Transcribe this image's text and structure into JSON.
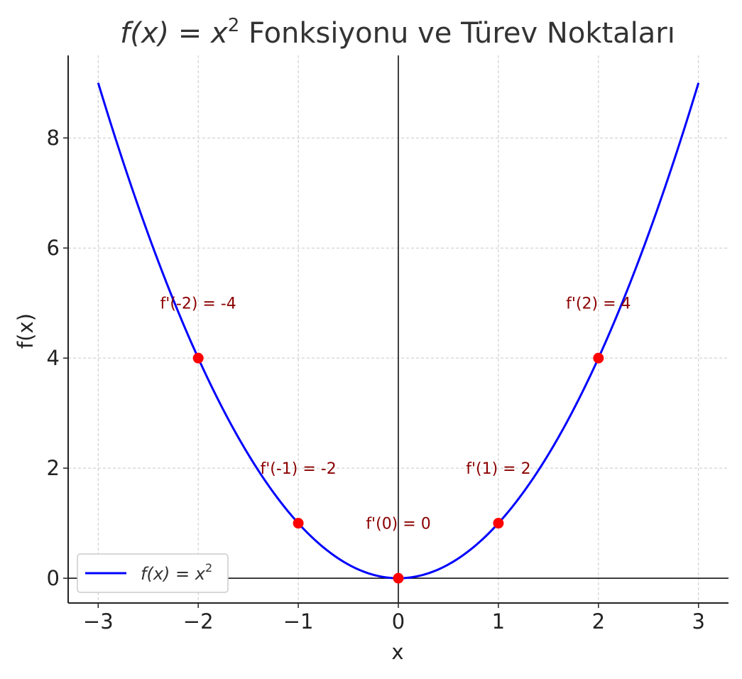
{
  "chart_data": {
    "type": "line",
    "title_main": "f(x) = x",
    "title_sup": "2",
    "title_rest": " Fonksiyonu ve Türev Noktaları",
    "xlabel": "x",
    "ylabel": "f(x)",
    "xlim": [
      -3.3,
      3.3
    ],
    "ylim": [
      -0.45,
      9.5
    ],
    "x_ticks": [
      -3,
      -2,
      -1,
      0,
      1,
      2,
      3
    ],
    "x_tick_labels": [
      "−3",
      "−2",
      "−1",
      "0",
      "1",
      "2",
      "3"
    ],
    "y_ticks": [
      0,
      2,
      4,
      6,
      8
    ],
    "y_tick_labels": [
      "0",
      "2",
      "4",
      "6",
      "8"
    ],
    "grid": true,
    "series": [
      {
        "name": "f(x) = x²",
        "function": "x^2",
        "x_range": [
          -3,
          3
        ],
        "color": "#0000ff"
      }
    ],
    "points": [
      {
        "x": -2,
        "y": 4,
        "label": "f'(-2) = -4",
        "label_y": 5
      },
      {
        "x": -1,
        "y": 1,
        "label": "f'(-1) = -2",
        "label_y": 2
      },
      {
        "x": 0,
        "y": 0,
        "label": "f'(0) = 0",
        "label_y": 1
      },
      {
        "x": 1,
        "y": 1,
        "label": "f'(1) = 2",
        "label_y": 2
      },
      {
        "x": 2,
        "y": 4,
        "label": "f'(2) = 4",
        "label_y": 5
      }
    ],
    "point_color": "#ff0000",
    "annotation_color": "#8b0000",
    "legend_position": "lower-left",
    "legend_label_main": "f(x) = x",
    "legend_label_sup": "2"
  }
}
